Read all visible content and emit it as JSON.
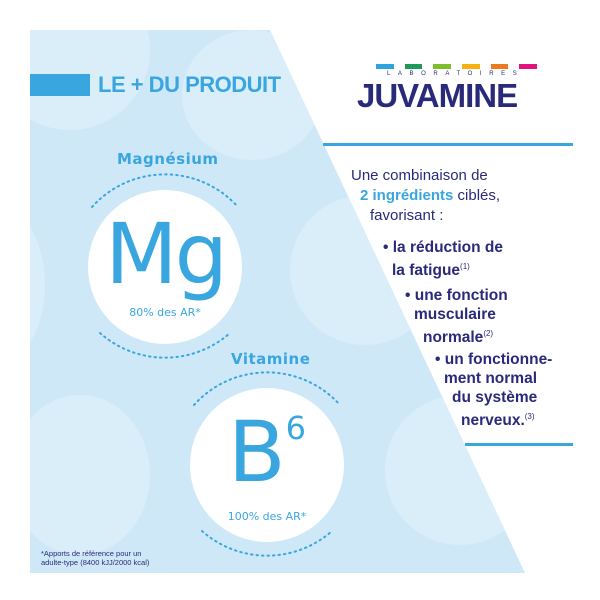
{
  "header": {
    "title": "LE + DU PRODUIT"
  },
  "logo": {
    "top_text": "LABORATOIRES",
    "brand": "JUVAMINE",
    "bar_colors": [
      "#2fa3e0",
      "#1d9a5a",
      "#7cbf2a",
      "#f6b111",
      "#ee7a1f",
      "#e2127d"
    ]
  },
  "ingredients": [
    {
      "label": "Magnésium",
      "symbol": "Mg",
      "percent": "80% des AR*"
    },
    {
      "label": "Vitamine",
      "symbol": "B",
      "superscript": "6",
      "percent": "100% des AR*"
    }
  ],
  "intro": {
    "line1": "Une combinaison de",
    "highlight": "2 ingrédients",
    "line2_rest": " ciblés,",
    "line3": "favorisant :"
  },
  "benefits": [
    {
      "lines": [
        "• la réduction de",
        "la fatigue"
      ],
      "ref": "(1)"
    },
    {
      "lines": [
        "• une fonction",
        "musculaire",
        "normale"
      ],
      "ref": "(2)"
    },
    {
      "lines": [
        "• un fonctionne-",
        "ment normal",
        "du système",
        "nerveux."
      ],
      "ref": "(3)"
    }
  ],
  "footnote": {
    "line1": "*Apports de référence pour un",
    "line2": "adulte-type (8400 kJJ/2000 kcal)"
  },
  "colors": {
    "accent": "#3aa6e0",
    "text": "#2a2a7a",
    "background": "#cfe8f7"
  }
}
